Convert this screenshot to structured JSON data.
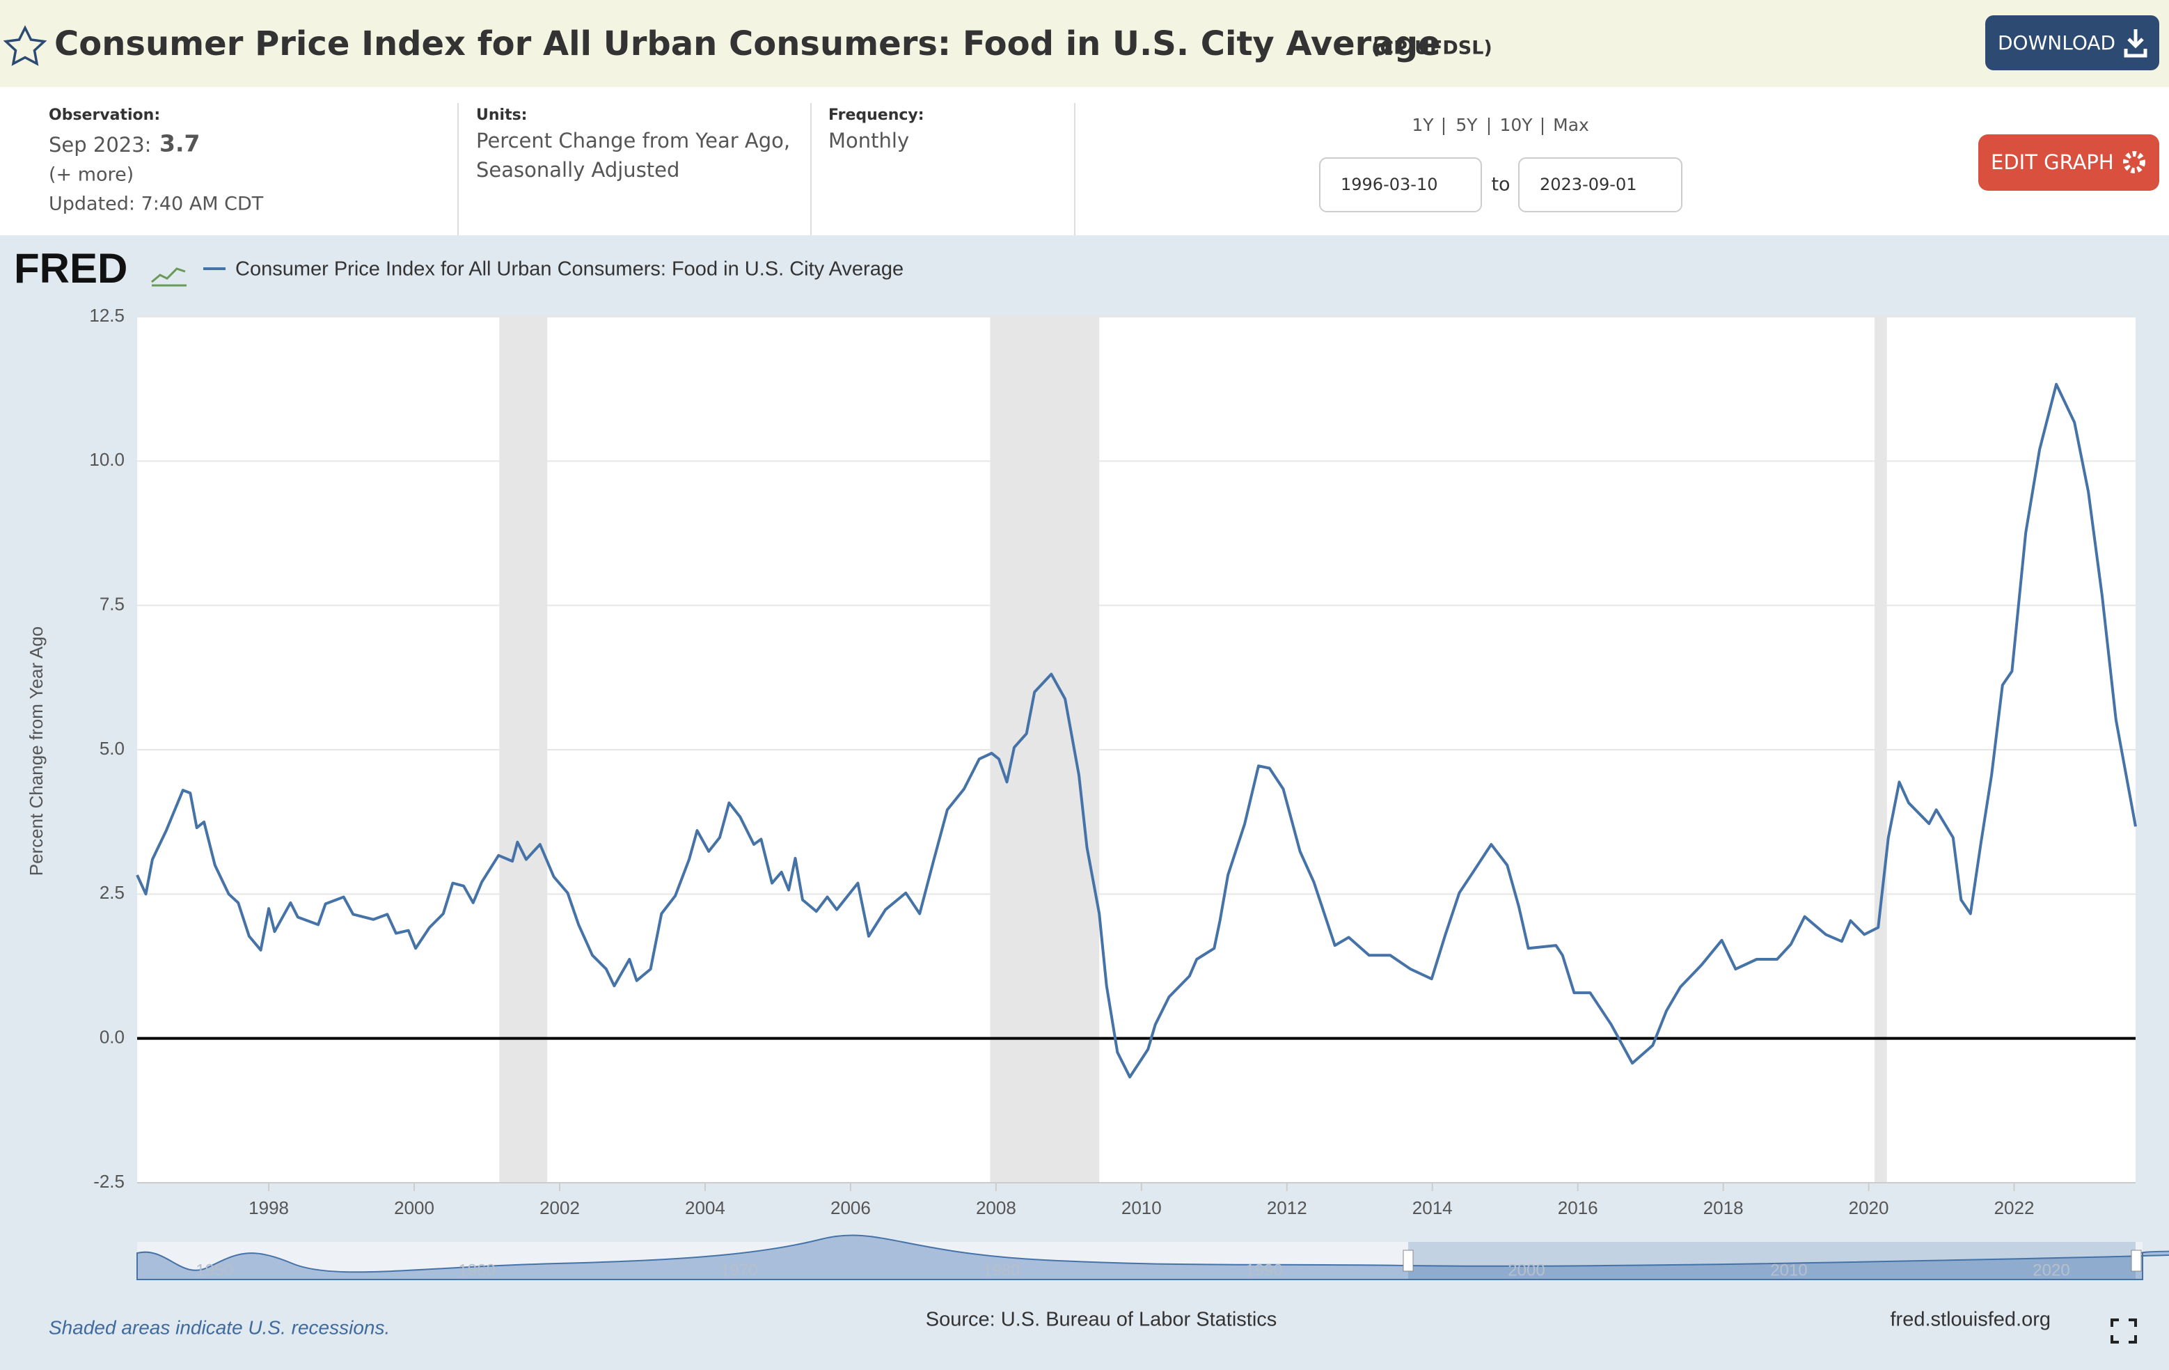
{
  "header": {
    "title": "Consumer Price Index for All Urban Consumers: Food in U.S. City Average",
    "series_id": "(CPIUFDSL)",
    "download": "DOWNLOAD"
  },
  "info": {
    "observation_label": "Observation:",
    "observation_date": "Sep 2023:",
    "observation_value": "3.7",
    "more": "(+ more)",
    "updated": "Updated: 7:40 AM CDT",
    "units_label": "Units:",
    "units": [
      "Percent Change from Year Ago,",
      "Seasonally Adjusted"
    ],
    "frequency_label": "Frequency:",
    "frequency": "Monthly",
    "ranges": [
      "1Y",
      "5Y",
      "10Y",
      "Max"
    ],
    "range_separator": "|",
    "start_date": "1996-03-10",
    "to": "to",
    "end_date": "2023-09-01",
    "edit": "EDIT GRAPH"
  },
  "chart_data": {
    "type": "line",
    "logo": "FRED",
    "y_label": "Percent Change from Year Ago",
    "xlim": [
      1996.19,
      2023.67
    ],
    "ylim": [
      -2.5,
      12.5
    ],
    "xticks": [
      1998,
      2000,
      2002,
      2004,
      2006,
      2008,
      2010,
      2012,
      2014,
      2016,
      2018,
      2020,
      2022
    ],
    "yticks": [
      -2.5,
      {
        "value": 0,
        "label": "0.0"
      },
      2.5,
      {
        "value": 5,
        "label": "5.0"
      },
      7.5,
      {
        "value": 10,
        "label": "10.0"
      },
      12.5
    ],
    "grid": true,
    "recessions": [
      [
        2001.17,
        2001.83
      ],
      [
        2007.92,
        2009.42
      ],
      [
        2020.08,
        2020.25
      ]
    ],
    "recession_color": "#e6e6e6",
    "x": [
      1996.19,
      1996.31,
      1996.4,
      1996.59,
      1996.82,
      1996.92,
      1997.01,
      1997.11,
      1997.26,
      1997.45,
      1997.58,
      1997.73,
      1997.89,
      1998.0,
      1998.08,
      1998.3,
      1998.4,
      1998.68,
      1998.78,
      1999.03,
      1999.16,
      1999.44,
      1999.63,
      1999.75,
      1999.92,
      2000.02,
      2000.21,
      2000.4,
      2000.53,
      2000.68,
      2000.81,
      2000.93,
      2001.16,
      2001.35,
      2001.42,
      2001.54,
      2001.73,
      2001.92,
      2002.11,
      2002.26,
      2002.45,
      2002.64,
      2002.75,
      2002.96,
      2003.06,
      2003.25,
      2003.4,
      2003.59,
      2003.78,
      2003.89,
      2004.05,
      2004.2,
      2004.33,
      2004.48,
      2004.67,
      2004.77,
      2004.92,
      2005.05,
      2005.15,
      2005.24,
      2005.34,
      2005.53,
      2005.68,
      2005.81,
      2006.1,
      2006.25,
      2006.48,
      2006.76,
      2006.95,
      2007.14,
      2007.33,
      2007.56,
      2007.77,
      2007.94,
      2008.04,
      2008.15,
      2008.25,
      2008.42,
      2008.53,
      2008.76,
      2008.95,
      2009.14,
      2009.25,
      2009.42,
      2009.52,
      2009.67,
      2009.84,
      2010.09,
      2010.19,
      2010.38,
      2010.66,
      2010.76,
      2011.0,
      2011.08,
      2011.19,
      2011.42,
      2011.61,
      2011.76,
      2011.95,
      2012.18,
      2012.37,
      2012.66,
      2012.85,
      2013.13,
      2013.42,
      2013.7,
      2013.99,
      2014.18,
      2014.37,
      2014.56,
      2014.81,
      2015.03,
      2015.19,
      2015.32,
      2015.7,
      2015.79,
      2015.95,
      2016.17,
      2016.46,
      2016.75,
      2017.03,
      2017.22,
      2017.41,
      2017.7,
      2017.98,
      2018.17,
      2018.46,
      2018.74,
      2018.93,
      2019.12,
      2019.41,
      2019.63,
      2019.75,
      2019.94,
      2020.13,
      2020.27,
      2020.42,
      2020.55,
      2020.83,
      2020.93,
      2021.16,
      2021.27,
      2021.4,
      2021.54,
      2021.69,
      2021.84,
      2021.97,
      2022.16,
      2022.35,
      2022.58,
      2022.83,
      2023.02,
      2023.21,
      2023.4,
      2023.67
    ],
    "series": [
      {
        "name": "Consumer Price Index for All Urban Consumers: Food in U.S. City Average",
        "color": "#4572a7",
        "values": [
          2.83,
          2.5,
          3.1,
          3.6,
          4.3,
          4.25,
          3.65,
          3.75,
          3.0,
          2.5,
          2.35,
          1.77,
          1.53,
          2.25,
          1.85,
          2.35,
          2.1,
          1.97,
          2.33,
          2.45,
          2.15,
          2.06,
          2.15,
          1.82,
          1.87,
          1.56,
          1.92,
          2.16,
          2.69,
          2.64,
          2.35,
          2.71,
          3.17,
          3.07,
          3.4,
          3.1,
          3.36,
          2.8,
          2.52,
          1.97,
          1.44,
          1.2,
          0.91,
          1.37,
          1.0,
          1.2,
          2.16,
          2.47,
          3.1,
          3.6,
          3.24,
          3.48,
          4.08,
          3.84,
          3.36,
          3.45,
          2.69,
          2.88,
          2.57,
          3.12,
          2.4,
          2.2,
          2.45,
          2.23,
          2.69,
          1.77,
          2.23,
          2.52,
          2.16,
          3.07,
          3.96,
          4.32,
          4.84,
          4.94,
          4.84,
          4.44,
          5.04,
          5.28,
          6.0,
          6.31,
          5.88,
          4.56,
          3.31,
          2.16,
          0.91,
          -0.24,
          -0.67,
          -0.19,
          0.24,
          0.72,
          1.08,
          1.37,
          1.56,
          2.04,
          2.83,
          3.72,
          4.72,
          4.68,
          4.32,
          3.24,
          2.71,
          1.61,
          1.75,
          1.44,
          1.44,
          1.2,
          1.03,
          1.8,
          2.52,
          2.88,
          3.36,
          3.0,
          2.28,
          1.56,
          1.61,
          1.44,
          0.79,
          0.79,
          0.24,
          -0.43,
          -0.12,
          0.48,
          0.89,
          1.27,
          1.7,
          1.2,
          1.37,
          1.37,
          1.63,
          2.11,
          1.8,
          1.68,
          2.04,
          1.8,
          1.92,
          3.48,
          4.44,
          4.08,
          3.72,
          3.96,
          3.48,
          2.4,
          2.16,
          3.36,
          4.56,
          6.12,
          6.36,
          8.76,
          10.2,
          11.33,
          10.67,
          9.47,
          7.67,
          5.52,
          3.67
        ]
      }
    ],
    "navigator_labels": [
      "1950",
      "1960",
      "1970",
      "1980",
      "1990",
      "2000",
      "2010",
      "2020"
    ]
  },
  "footer": {
    "note": "Shaded areas indicate U.S. recessions.",
    "source": "Source: U.S. Bureau of Labor Statistics",
    "site": "fred.stlouisfed.org"
  }
}
